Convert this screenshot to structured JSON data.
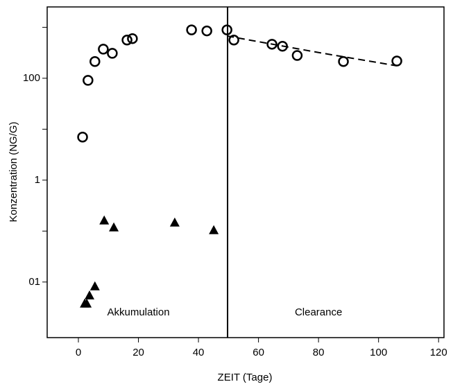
{
  "chart_data": {
    "type": "scatter",
    "xlabel": "ZEIT (Tage)",
    "ylabel": "Konzentration (NG/G)",
    "xlim": [
      -10.4,
      121.8
    ],
    "xticks": [
      0,
      20,
      40,
      60,
      80,
      100,
      120
    ],
    "ylim": [
      0.00081,
      2512
    ],
    "log_y": true,
    "yticks": [
      100,
      1,
      {
        "value": 0.01,
        "label": "01"
      }
    ],
    "yticks_minor": [
      1000,
      10,
      0.1
    ],
    "series": [
      {
        "name": null,
        "marker": "circle",
        "color": "#000000",
        "x": [
          1.4,
          3.2,
          5.5,
          8.3,
          11.3,
          16.2,
          18.0,
          37.7,
          42.8,
          49.5,
          51.8,
          64.5,
          68.0,
          72.9,
          88.3,
          106.1
        ],
        "values": [
          7,
          91,
          213,
          373,
          309,
          562,
          600,
          890,
          850,
          890,
          562,
          465,
          425,
          280,
          213,
          218
        ]
      },
      {
        "name": null,
        "marker": "triangle",
        "color": "#000000",
        "x": [
          8.6,
          11.8,
          32.1,
          45.1,
          5.5,
          3.7,
          2.8,
          2.1
        ],
        "values": [
          0.163,
          0.119,
          0.148,
          0.105,
          0.0083,
          0.0055,
          0.0038,
          0.0038
        ]
      },
      {
        "name": null,
        "marker": "dashed-line",
        "color": "#000000",
        "x": [
          49.5,
          80,
          106
        ],
        "values": [
          676,
          320,
          176
        ]
      }
    ],
    "divider_x": 49.7,
    "annotations": [
      {
        "text": "Akkumulation",
        "x": 20,
        "y": 0.0025
      },
      {
        "text": "Clearance",
        "x": 80,
        "y": 0.0025
      }
    ]
  }
}
